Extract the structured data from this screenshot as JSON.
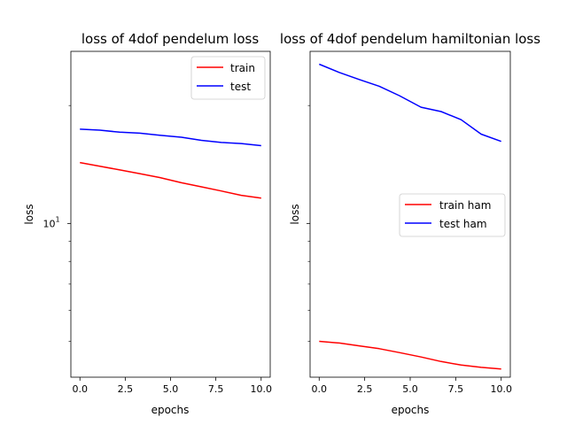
{
  "chart_data": [
    {
      "type": "line",
      "title": "loss of 4dof pendelum loss",
      "xlabel": "epochs",
      "ylabel": "loss",
      "yscale": "log",
      "xlim": [
        -0.5,
        10.5
      ],
      "ylim": [
        4.05,
        27.5
      ],
      "xticks": [
        0.0,
        2.5,
        5.0,
        7.5,
        10.0
      ],
      "xtick_labels": [
        "0.0",
        "2.5",
        "5.0",
        "7.5",
        "10.0"
      ],
      "yticks_major": [
        10
      ],
      "ytick_labels": [
        "10^1"
      ],
      "grid": false,
      "legend": "top-right",
      "series": [
        {
          "name": "train",
          "color": "#ff0000",
          "x": [
            0,
            1.1,
            2.2,
            3.3,
            4.4,
            5.6,
            6.7,
            7.8,
            8.9,
            10
          ],
          "y": [
            14.3,
            14.0,
            13.7,
            13.4,
            13.1,
            12.7,
            12.4,
            12.1,
            11.8,
            11.6
          ]
        },
        {
          "name": "test",
          "color": "#0000ff",
          "x": [
            0,
            1.1,
            2.2,
            3.3,
            4.4,
            5.6,
            6.7,
            7.8,
            8.9,
            10
          ],
          "y": [
            17.4,
            17.3,
            17.1,
            17.0,
            16.8,
            16.6,
            16.3,
            16.1,
            16.0,
            15.8
          ]
        }
      ]
    },
    {
      "type": "line",
      "title": "loss of 4dof pendelum hamiltonian loss",
      "xlabel": "epochs",
      "ylabel": "loss",
      "yscale": "log",
      "shared_y": true,
      "xlim": [
        -0.5,
        10.5
      ],
      "ylim": [
        4.05,
        27.5
      ],
      "xticks": [
        0.0,
        2.5,
        5.0,
        7.5,
        10.0
      ],
      "xtick_labels": [
        "0.0",
        "2.5",
        "5.0",
        "7.5",
        "10.0"
      ],
      "yticks_major": [
        10
      ],
      "ytick_labels": [],
      "grid": false,
      "legend": "center-right",
      "series": [
        {
          "name": "train ham",
          "color": "#ff0000",
          "x": [
            0,
            1.1,
            2.2,
            3.3,
            4.4,
            5.6,
            6.7,
            7.8,
            8.9,
            10
          ],
          "y": [
            5.0,
            4.95,
            4.87,
            4.79,
            4.68,
            4.56,
            4.44,
            4.35,
            4.29,
            4.25
          ]
        },
        {
          "name": "test ham",
          "color": "#0000ff",
          "x": [
            0,
            1.1,
            2.2,
            3.3,
            4.4,
            5.6,
            6.7,
            7.8,
            8.9,
            10
          ],
          "y": [
            25.5,
            24.3,
            23.3,
            22.4,
            21.2,
            19.8,
            19.3,
            18.4,
            16.9,
            16.2
          ]
        }
      ]
    }
  ]
}
